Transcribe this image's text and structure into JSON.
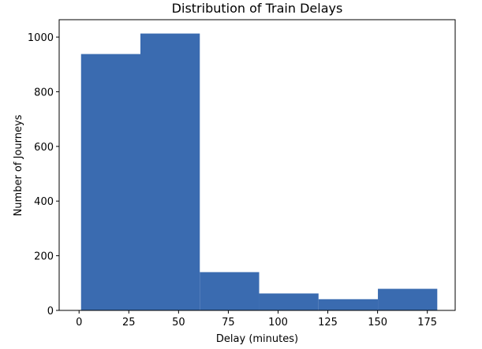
{
  "chart_data": {
    "type": "histogram",
    "title": "Distribution of Train Delays",
    "x_label": "Delay (minutes)",
    "y_label": "Number of Journeys",
    "bins": [
      1,
      30.83,
      60.67,
      90.5,
      120.33,
      150.17,
      180
    ],
    "values": [
      938,
      1013,
      140,
      62,
      41,
      79
    ],
    "color": "#3a6bb0",
    "xlim": [
      -10,
      189
    ],
    "xticks": [
      0,
      25,
      50,
      75,
      100,
      125,
      150,
      175
    ],
    "ylim": [
      0,
      1063.65
    ],
    "yticks": [
      0,
      200,
      400,
      600,
      800,
      1000
    ]
  }
}
